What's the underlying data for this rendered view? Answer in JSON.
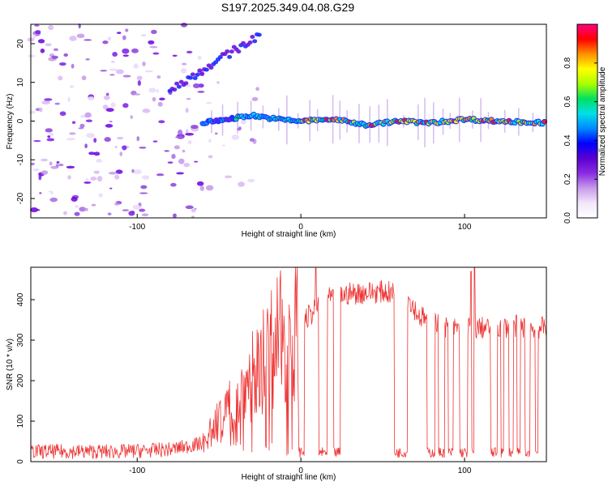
{
  "title": "S197.2025.349.04.08.G29",
  "chart_data": [
    {
      "type": "heatmap",
      "name": "spectrogram",
      "xlabel": "Height of straight line (km)",
      "ylabel": "Frequency (Hz)",
      "xlim": [
        -165,
        150
      ],
      "ylim": [
        -25,
        25
      ],
      "x_ticks": [
        -100,
        0,
        100
      ],
      "y_ticks": [
        -20,
        -10,
        0,
        10,
        20
      ],
      "colorbar": {
        "label": "Normalized spectral amplitude",
        "range": [
          0,
          1
        ],
        "ticks": [
          "0.0",
          "0.2",
          "0.4",
          "0.6",
          "0.8"
        ],
        "colors": [
          "#ffffff",
          "#f2e6fb",
          "#c79bea",
          "#8a2be2",
          "#5a00d0",
          "#0000ff",
          "#0088ff",
          "#00e0e8",
          "#00e060",
          "#aaff00",
          "#ffff00",
          "#ff9000",
          "#ff0000",
          "#ff0080"
        ]
      },
      "ridge": [
        {
          "x": -60,
          "y": -0.5
        },
        {
          "x": -45,
          "y": 0.5
        },
        {
          "x": -30,
          "y": 1.5
        },
        {
          "x": -15,
          "y": 0.5
        },
        {
          "x": 0,
          "y": 0
        },
        {
          "x": 20,
          "y": 0.5
        },
        {
          "x": 40,
          "y": -1
        },
        {
          "x": 60,
          "y": 0
        },
        {
          "x": 80,
          "y": -0.5
        },
        {
          "x": 100,
          "y": 0.5
        },
        {
          "x": 120,
          "y": 0
        },
        {
          "x": 150,
          "y": -0.5
        }
      ]
    },
    {
      "type": "line",
      "name": "snr",
      "xlabel": "Height of straight line (km)",
      "ylabel": "SNR (10 * v/v)",
      "xlim": [
        -165,
        150
      ],
      "ylim": [
        0,
        480
      ],
      "x_ticks": [
        -100,
        0,
        100
      ],
      "y_ticks": [
        0,
        100,
        200,
        300,
        400
      ],
      "color": "#ee3333",
      "profile": [
        {
          "x": -165,
          "y": 25
        },
        {
          "x": -110,
          "y": 25
        },
        {
          "x": -80,
          "y": 30
        },
        {
          "x": -60,
          "y": 45
        },
        {
          "x": -52,
          "y": 90
        },
        {
          "x": -45,
          "y": 130
        },
        {
          "x": -38,
          "y": 170
        },
        {
          "x": -30,
          "y": 210
        },
        {
          "x": -22,
          "y": 260
        },
        {
          "x": -15,
          "y": 300
        },
        {
          "x": -5,
          "y": 320
        },
        {
          "x": 5,
          "y": 360
        },
        {
          "x": 15,
          "y": 400
        },
        {
          "x": 30,
          "y": 415
        },
        {
          "x": 50,
          "y": 420
        },
        {
          "x": 65,
          "y": 410
        },
        {
          "x": 72,
          "y": 360
        },
        {
          "x": 90,
          "y": 330
        },
        {
          "x": 110,
          "y": 330
        },
        {
          "x": 130,
          "y": 335
        },
        {
          "x": 150,
          "y": 330
        }
      ],
      "dropouts": [
        {
          "x0": -1.5,
          "x1": 2
        },
        {
          "x0": 11,
          "x1": 16
        },
        {
          "x0": 20,
          "x1": 24
        },
        {
          "x0": 57,
          "x1": 65
        },
        {
          "x0": 77,
          "x1": 82
        },
        {
          "x0": 84,
          "x1": 88
        },
        {
          "x0": 90,
          "x1": 93
        },
        {
          "x0": 97,
          "x1": 102
        },
        {
          "x0": 104,
          "x1": 106
        },
        {
          "x0": 116,
          "x1": 120
        },
        {
          "x0": 122,
          "x1": 124
        },
        {
          "x0": 127,
          "x1": 130
        },
        {
          "x0": 132,
          "x1": 134
        },
        {
          "x0": 137,
          "x1": 140
        },
        {
          "x0": 143,
          "x1": 145
        }
      ],
      "spikes": [
        {
          "x": 9,
          "y": 478
        },
        {
          "x": 106,
          "y": 480
        },
        {
          "x": 104,
          "y": 470
        }
      ]
    }
  ]
}
